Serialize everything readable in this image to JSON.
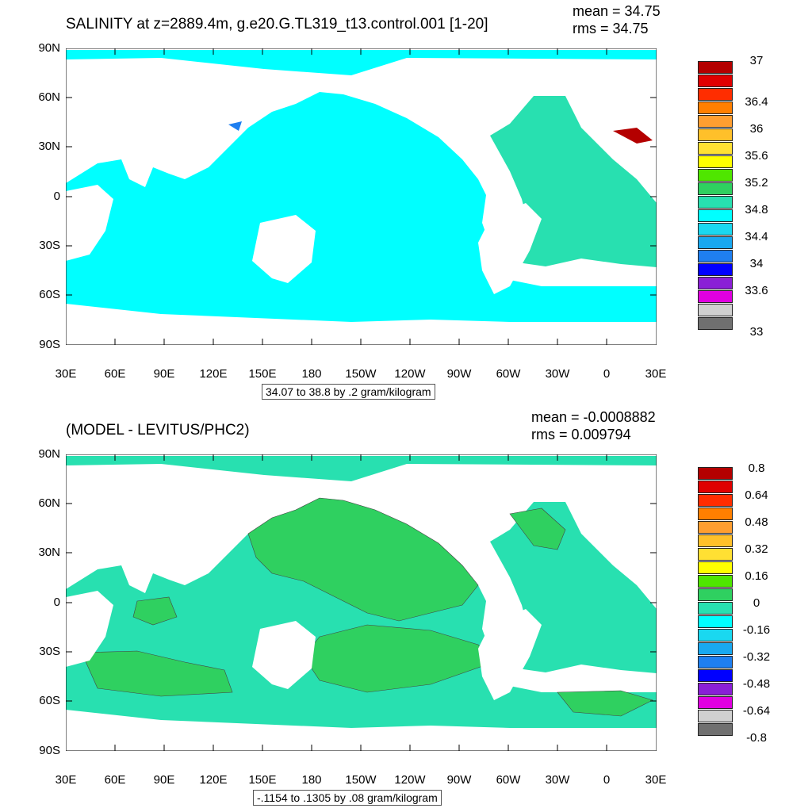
{
  "top": {
    "title": "SALINITY at z=2889.4m, g.e20.G.TL319_t13.control.001 [1-20]",
    "mean": "mean = 34.75",
    "rms": "rms = 34.75",
    "info": "34.07 to 38.8 by .2 gram/kilogram",
    "legend_labels": [
      "37",
      "36.4",
      "36",
      "35.6",
      "35.2",
      "34.8",
      "34.4",
      "34",
      "33.6",
      "33"
    ],
    "legend_colors": [
      "#b40000",
      "#e00000",
      "#ff2d00",
      "#ff7f00",
      "#ff9e30",
      "#ffc02a",
      "#ffe033",
      "#ffff00",
      "#4fe600",
      "#2fd060",
      "#28e0b0",
      "#00ffff",
      "#1ad8f0",
      "#19a8f0",
      "#1f7ff0",
      "#0000ff",
      "#8a1fd6",
      "#e000e0",
      "#d0d0d0",
      "#707070"
    ]
  },
  "bottom": {
    "title": "(MODEL - LEVITUS/PHC2)",
    "mean": "mean = -0.0008882",
    "rms": "rms = 0.009794",
    "info": "-.1154 to .1305 by .08 gram/kilogram",
    "legend_labels": [
      "0.8",
      "0.64",
      "0.48",
      "0.32",
      "0.16",
      "0",
      "-0.16",
      "-0.32",
      "-0.48",
      "-0.64",
      "-0.8"
    ],
    "legend_colors": [
      "#b40000",
      "#e00000",
      "#ff2d00",
      "#ff7f00",
      "#ff9e30",
      "#ffc02a",
      "#ffe033",
      "#ffff00",
      "#4fe600",
      "#2fd060",
      "#28e0b0",
      "#00ffff",
      "#1ad8f0",
      "#19a8f0",
      "#1f7ff0",
      "#0000ff",
      "#8a1fd6",
      "#e000e0",
      "#d0d0d0",
      "#707070"
    ]
  },
  "axes": {
    "lat_labels": [
      "90N",
      "60N",
      "30N",
      "0",
      "30S",
      "60S",
      "90S"
    ],
    "lon_labels": [
      "30E",
      "60E",
      "90E",
      "120E",
      "150E",
      "180",
      "150W",
      "120W",
      "90W",
      "60W",
      "30W",
      "0",
      "30E"
    ]
  },
  "colors": {
    "ocean_fill_top": "#00ffff",
    "ocean_atlantic_top": "#28e0b0",
    "ocean_fill_bottom": "#28e0b0",
    "anomaly_fill_bottom": "#2fd060",
    "land": "#ffffff"
  }
}
